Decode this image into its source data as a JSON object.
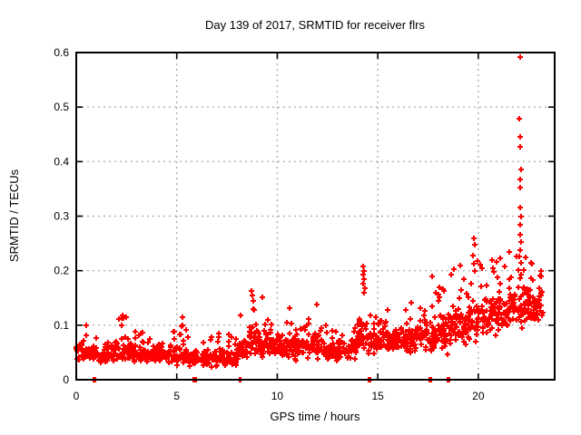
{
  "chart_data": {
    "type": "scatter",
    "title": "Day 139 of 2017, SRMTID for receiver flrs",
    "xlabel": "GPS time / hours",
    "ylabel": "SRMTID / TECUs",
    "xlim": [
      0,
      23.8
    ],
    "ylim": [
      0,
      0.6
    ],
    "xticks": [
      0,
      5,
      10,
      15,
      20
    ],
    "xtick_labels": [
      "0",
      "5",
      "10",
      "15",
      "20"
    ],
    "yticks": [
      0,
      0.1,
      0.2,
      0.3,
      0.4,
      0.5,
      0.6
    ],
    "ytick_labels": [
      "0",
      "0.1",
      "0.2",
      "0.3",
      "0.4",
      "0.5",
      "0.6"
    ],
    "grid": true,
    "legend": "none",
    "marker": "plus",
    "marker_color": "#ff0000",
    "grid_color": "#b0b0b0",
    "border_color": "#000000",
    "seed": 1390,
    "series_name": "SRMTID",
    "envelope_bins_format": [
      "hour_start",
      "hour_end",
      "n_points",
      "mean_TECU",
      "spread_TECU",
      "max_TECU"
    ],
    "envelope_bins": [
      [
        0.0,
        0.5,
        30,
        0.055,
        0.022,
        0.1
      ],
      [
        0.5,
        1.0,
        30,
        0.05,
        0.02,
        0.09
      ],
      [
        1.0,
        1.5,
        30,
        0.045,
        0.018,
        0.085
      ],
      [
        1.5,
        2.0,
        30,
        0.05,
        0.022,
        0.1
      ],
      [
        2.0,
        2.5,
        32,
        0.055,
        0.026,
        0.118
      ],
      [
        2.5,
        3.0,
        30,
        0.05,
        0.022,
        0.1
      ],
      [
        3.0,
        3.5,
        30,
        0.05,
        0.02,
        0.09
      ],
      [
        3.5,
        4.0,
        30,
        0.045,
        0.018,
        0.085
      ],
      [
        4.0,
        4.5,
        30,
        0.045,
        0.018,
        0.08
      ],
      [
        4.5,
        5.0,
        30,
        0.045,
        0.02,
        0.09
      ],
      [
        5.0,
        5.5,
        32,
        0.05,
        0.026,
        0.112
      ],
      [
        5.5,
        6.0,
        28,
        0.04,
        0.018,
        0.08
      ],
      [
        6.0,
        6.5,
        28,
        0.04,
        0.018,
        0.075
      ],
      [
        6.5,
        7.0,
        28,
        0.04,
        0.018,
        0.08
      ],
      [
        7.0,
        7.5,
        30,
        0.045,
        0.02,
        0.09
      ],
      [
        7.5,
        8.0,
        28,
        0.04,
        0.02,
        0.085
      ],
      [
        8.0,
        8.5,
        32,
        0.055,
        0.028,
        0.12
      ],
      [
        8.5,
        9.0,
        34,
        0.07,
        0.035,
        0.16
      ],
      [
        9.0,
        9.5,
        32,
        0.065,
        0.03,
        0.15
      ],
      [
        9.5,
        10.0,
        30,
        0.06,
        0.025,
        0.11
      ],
      [
        10.0,
        10.5,
        32,
        0.06,
        0.028,
        0.125
      ],
      [
        10.5,
        11.0,
        32,
        0.065,
        0.03,
        0.135
      ],
      [
        11.0,
        11.5,
        30,
        0.06,
        0.025,
        0.11
      ],
      [
        11.5,
        12.0,
        32,
        0.065,
        0.028,
        0.135
      ],
      [
        12.0,
        12.5,
        30,
        0.055,
        0.024,
        0.1
      ],
      [
        12.5,
        13.0,
        30,
        0.05,
        0.022,
        0.095
      ],
      [
        13.0,
        13.5,
        30,
        0.055,
        0.024,
        0.105
      ],
      [
        13.5,
        14.0,
        32,
        0.06,
        0.028,
        0.12
      ],
      [
        14.0,
        14.5,
        40,
        0.085,
        0.045,
        0.195
      ],
      [
        14.5,
        15.0,
        30,
        0.07,
        0.032,
        0.14
      ],
      [
        15.0,
        15.5,
        32,
        0.08,
        0.034,
        0.15
      ],
      [
        15.5,
        16.0,
        30,
        0.07,
        0.03,
        0.13
      ],
      [
        16.0,
        16.5,
        30,
        0.07,
        0.03,
        0.13
      ],
      [
        16.5,
        17.0,
        32,
        0.075,
        0.033,
        0.145
      ],
      [
        17.0,
        17.5,
        32,
        0.08,
        0.035,
        0.15
      ],
      [
        17.5,
        18.0,
        34,
        0.085,
        0.04,
        0.185
      ],
      [
        18.0,
        18.5,
        34,
        0.09,
        0.04,
        0.18
      ],
      [
        18.5,
        19.0,
        34,
        0.1,
        0.044,
        0.2
      ],
      [
        19.0,
        19.5,
        34,
        0.1,
        0.045,
        0.205
      ],
      [
        19.5,
        20.0,
        36,
        0.11,
        0.048,
        0.24
      ],
      [
        20.0,
        20.5,
        34,
        0.11,
        0.045,
        0.215
      ],
      [
        20.5,
        21.0,
        34,
        0.12,
        0.048,
        0.22
      ],
      [
        21.0,
        21.5,
        36,
        0.12,
        0.048,
        0.225
      ],
      [
        21.5,
        22.0,
        36,
        0.13,
        0.05,
        0.235
      ],
      [
        22.0,
        22.5,
        44,
        0.135,
        0.055,
        0.23
      ],
      [
        22.5,
        23.0,
        38,
        0.13,
        0.05,
        0.215
      ],
      [
        23.0,
        23.2,
        14,
        0.14,
        0.04,
        0.195
      ]
    ],
    "outlier_points": [
      [
        22.08,
        0.592
      ],
      [
        22.06,
        0.478
      ],
      [
        22.1,
        0.445
      ],
      [
        22.08,
        0.427
      ],
      [
        22.11,
        0.385
      ],
      [
        22.07,
        0.368
      ],
      [
        22.1,
        0.352
      ],
      [
        22.09,
        0.316
      ],
      [
        22.12,
        0.3
      ],
      [
        22.07,
        0.285
      ],
      [
        22.1,
        0.266
      ],
      [
        22.13,
        0.252
      ],
      [
        22.08,
        0.237
      ],
      [
        22.05,
        0.226
      ],
      [
        22.11,
        0.214
      ],
      [
        14.27,
        0.208
      ],
      [
        14.3,
        0.2
      ],
      [
        14.25,
        0.192
      ],
      [
        14.33,
        0.185
      ],
      [
        14.28,
        0.177
      ],
      [
        14.36,
        0.168
      ],
      [
        14.31,
        0.16
      ],
      [
        19.78,
        0.26
      ],
      [
        19.81,
        0.247
      ],
      [
        19.75,
        0.228
      ],
      [
        19.79,
        0.212
      ],
      [
        21.08,
        0.222
      ],
      [
        21.55,
        0.234
      ],
      [
        22.35,
        0.224
      ],
      [
        20.92,
        0.216
      ],
      [
        18.78,
        0.203
      ],
      [
        19.12,
        0.21
      ],
      [
        22.65,
        0.212
      ],
      [
        23.1,
        0.2
      ],
      [
        8.72,
        0.163
      ],
      [
        8.78,
        0.155
      ],
      [
        9.28,
        0.152
      ],
      [
        17.72,
        0.19
      ],
      [
        11.95,
        0.138
      ],
      [
        10.62,
        0.132
      ],
      [
        5.28,
        0.114
      ],
      [
        2.3,
        0.118
      ]
    ],
    "zero_value_hours": [
      0.88,
      0.93,
      5.82,
      5.86,
      5.9,
      5.95,
      8.12,
      8.18,
      14.55,
      14.6,
      14.64,
      17.55,
      17.6,
      17.64,
      18.45,
      18.5,
      18.54
    ]
  }
}
